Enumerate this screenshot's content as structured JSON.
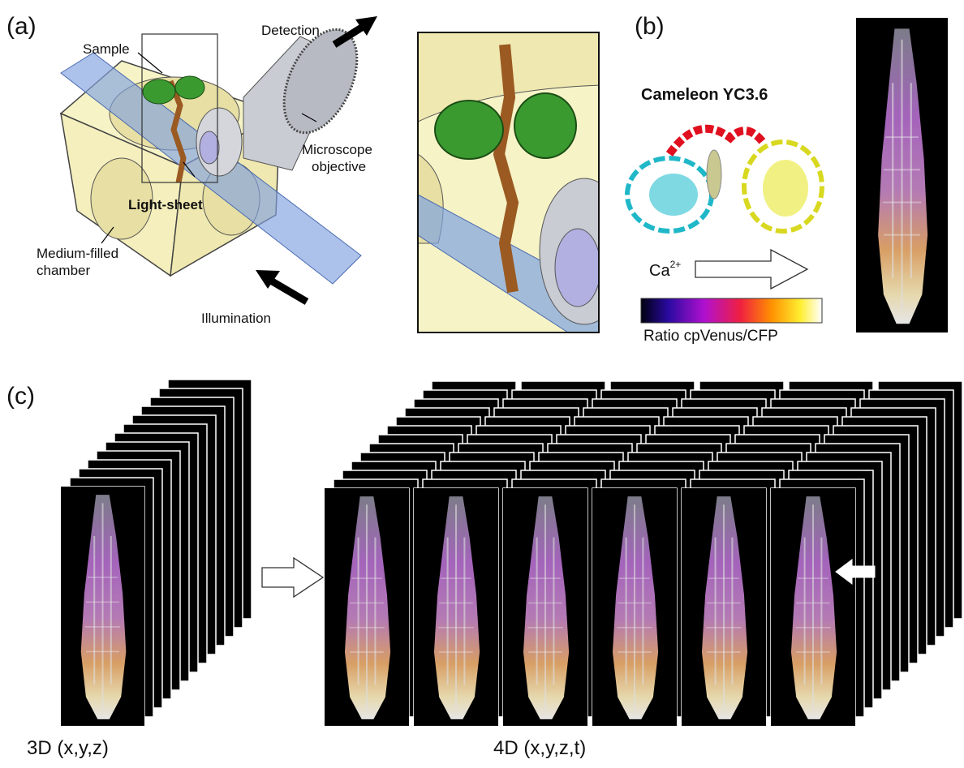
{
  "panel_a": {
    "label": "(a)",
    "detection": "Detection",
    "sample": "Sample",
    "objective": [
      "Microscope",
      "objective"
    ],
    "light_sheet": "Light-sheet",
    "chamber": [
      "Medium-filled",
      "chamber"
    ],
    "illumination": "Illumination"
  },
  "panel_b": {
    "label": "(b)",
    "protein": "Cameleon YC3.6",
    "ion": "Ca",
    "ion_charge": "2+",
    "colorbar_label": "Ratio cpVenus/CFP"
  },
  "panel_c": {
    "label": "(c)",
    "stack_3d": "3D (x,y,z)",
    "stack_4d": "4D (x,y,z,t)"
  }
}
